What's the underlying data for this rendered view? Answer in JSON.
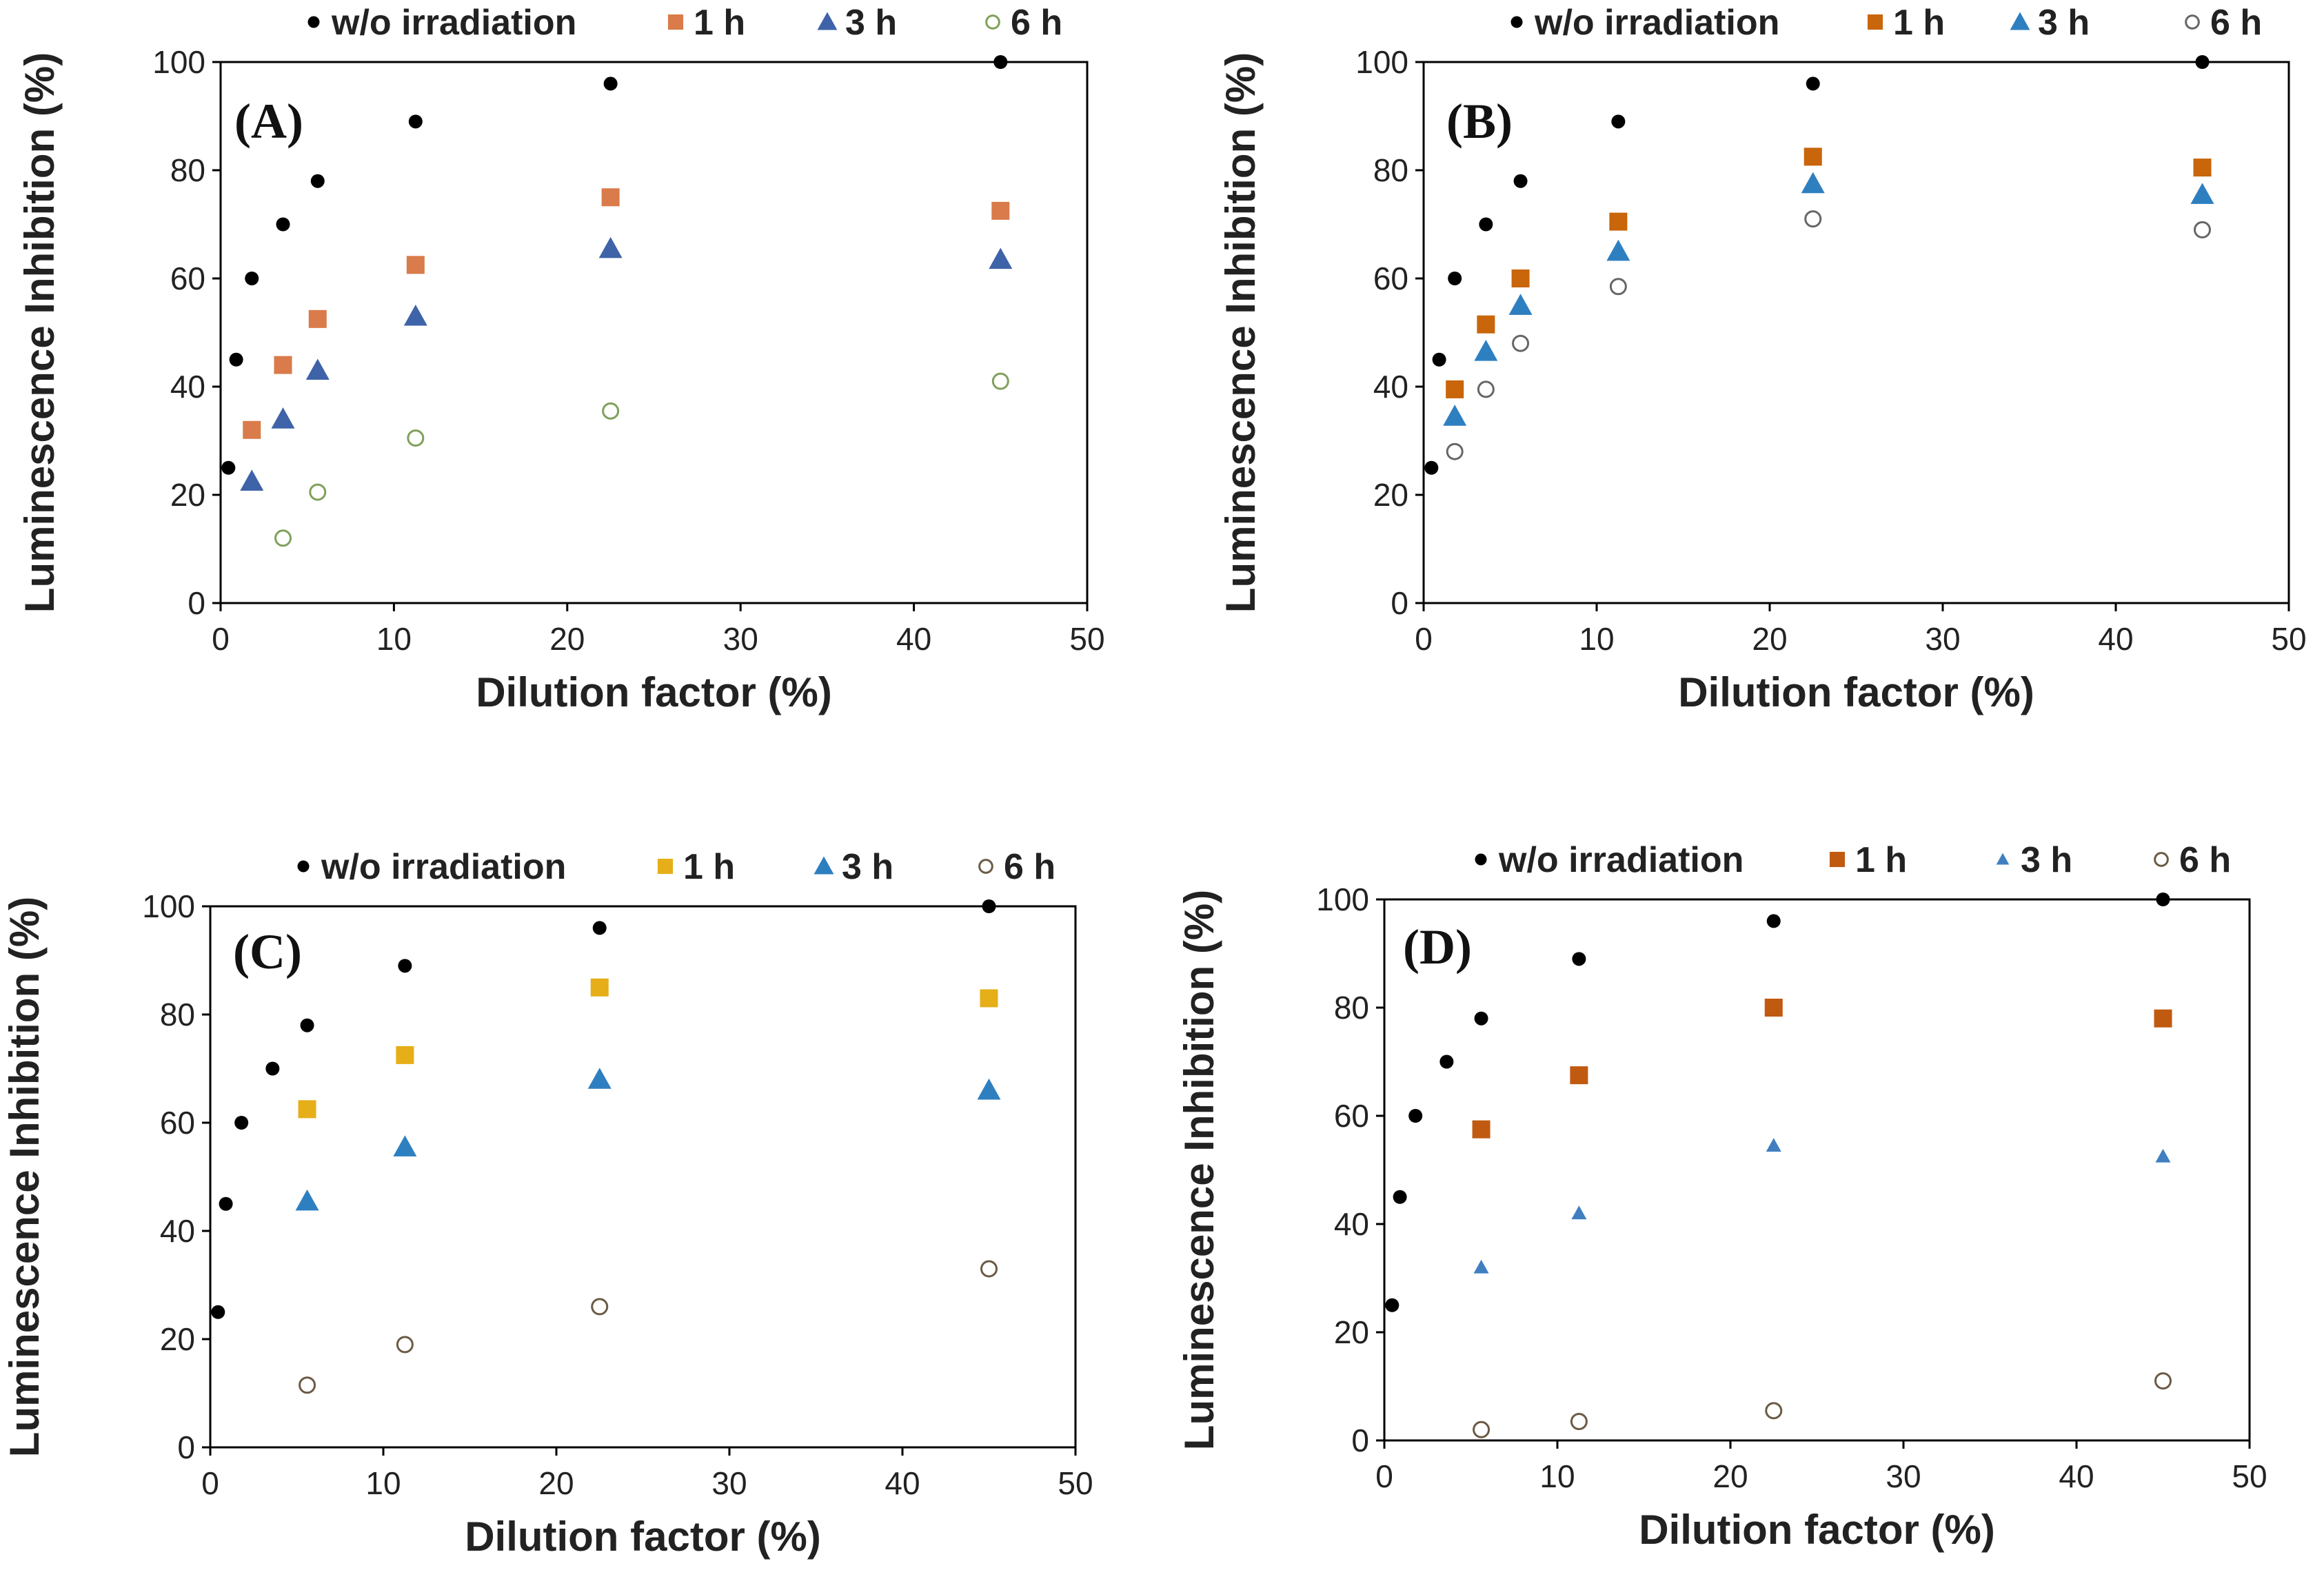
{
  "figure": {
    "x_label": "Dilution factor (%)",
    "y_label": "Luminescence Inhibition (%)"
  },
  "chart_data": [
    {
      "type": "scatter",
      "panel": "(A)",
      "xlabel": "Dilution factor (%)",
      "ylabel": "Luminescence Inhibition (%)",
      "xlim": [
        0,
        50
      ],
      "ylim": [
        0,
        100
      ],
      "xticks": [
        0,
        10,
        20,
        30,
        40,
        50
      ],
      "yticks": [
        0,
        20,
        40,
        60,
        80,
        100
      ],
      "series": [
        {
          "name": "w/o irradiation",
          "marker": "dot",
          "color": "#000000",
          "x": [
            0.45,
            0.9,
            1.8,
            3.6,
            5.6,
            11.25,
            22.5,
            45
          ],
          "y": [
            25,
            45,
            60,
            70,
            78,
            89,
            96,
            100
          ]
        },
        {
          "name": "1 h",
          "marker": "square",
          "color": "#D97B4A",
          "x": [
            1.8,
            3.6,
            5.6,
            11.25,
            22.5,
            45
          ],
          "y": [
            32,
            44,
            52.5,
            62.5,
            75,
            72.5
          ]
        },
        {
          "name": "3 h",
          "marker": "triangle",
          "color": "#3F63A8",
          "x": [
            1.8,
            3.6,
            5.6,
            11.25,
            22.5,
            45
          ],
          "y": [
            22.5,
            34,
            43,
            53,
            65.5,
            63.5
          ]
        },
        {
          "name": "6 h",
          "marker": "circle-open",
          "color": "#7FA05A",
          "x": [
            3.6,
            5.6,
            11.25,
            22.5,
            45
          ],
          "y": [
            12,
            20.5,
            30.5,
            35.5,
            41
          ]
        }
      ]
    },
    {
      "type": "scatter",
      "panel": "(B)",
      "xlabel": "Dilution factor (%)",
      "ylabel": "Luminescence Inhibition (%)",
      "xlim": [
        0,
        50
      ],
      "ylim": [
        0,
        100
      ],
      "xticks": [
        0,
        10,
        20,
        30,
        40,
        50
      ],
      "yticks": [
        0,
        20,
        40,
        60,
        80,
        100
      ],
      "series": [
        {
          "name": "w/o irradiation",
          "marker": "dot",
          "color": "#000000",
          "x": [
            0.45,
            0.9,
            1.8,
            3.6,
            5.6,
            11.25,
            22.5,
            45
          ],
          "y": [
            25,
            45,
            60,
            70,
            78,
            89,
            96,
            100
          ]
        },
        {
          "name": "1 h",
          "marker": "square",
          "color": "#C9650A",
          "x": [
            1.8,
            3.6,
            5.6,
            11.25,
            22.5,
            45
          ],
          "y": [
            39.5,
            51.5,
            60,
            70.5,
            82.5,
            80.5
          ]
        },
        {
          "name": "3 h",
          "marker": "triangle",
          "color": "#2E7FC0",
          "x": [
            1.8,
            3.6,
            5.6,
            11.25,
            22.5,
            45
          ],
          "y": [
            34.5,
            46.5,
            55,
            65,
            77.5,
            75.5
          ]
        },
        {
          "name": "6 h",
          "marker": "circle-open",
          "color": "#666666",
          "x": [
            1.8,
            3.6,
            5.6,
            11.25,
            22.5,
            45
          ],
          "y": [
            28,
            39.5,
            48,
            58.5,
            71,
            69
          ]
        }
      ]
    },
    {
      "type": "scatter",
      "panel": "(C)",
      "xlabel": "Dilution factor (%)",
      "ylabel": "Luminescence Inhibition (%)",
      "xlim": [
        0,
        50
      ],
      "ylim": [
        0,
        100
      ],
      "xticks": [
        0,
        10,
        20,
        30,
        40,
        50
      ],
      "yticks": [
        0,
        20,
        40,
        60,
        80,
        100
      ],
      "series": [
        {
          "name": "w/o irradiation",
          "marker": "dot",
          "color": "#000000",
          "x": [
            0.45,
            0.9,
            1.8,
            3.6,
            5.6,
            11.25,
            22.5,
            45
          ],
          "y": [
            25,
            45,
            60,
            70,
            78,
            89,
            96,
            100
          ]
        },
        {
          "name": "1 h",
          "marker": "square",
          "color": "#E6AE18",
          "x": [
            5.6,
            11.25,
            22.5,
            45
          ],
          "y": [
            62.5,
            72.5,
            85,
            83
          ]
        },
        {
          "name": "3 h",
          "marker": "triangle",
          "color": "#2E7FC0",
          "x": [
            5.6,
            11.25,
            22.5,
            45
          ],
          "y": [
            45.5,
            55.5,
            68,
            66
          ]
        },
        {
          "name": "6 h",
          "marker": "circle-open",
          "color": "#6B5A45",
          "x": [
            5.6,
            11.25,
            22.5,
            45
          ],
          "y": [
            11.5,
            19,
            26,
            33
          ]
        }
      ]
    },
    {
      "type": "scatter",
      "panel": "(D)",
      "xlabel": "Dilution factor (%)",
      "ylabel": "Luminescence Inhibition (%)",
      "xlim": [
        0,
        50
      ],
      "ylim": [
        0,
        100
      ],
      "xticks": [
        0,
        10,
        20,
        30,
        40,
        50
      ],
      "yticks": [
        0,
        20,
        40,
        60,
        80,
        100
      ],
      "series": [
        {
          "name": "w/o irradiation",
          "marker": "dot",
          "color": "#000000",
          "x": [
            0.45,
            0.9,
            1.8,
            3.6,
            5.6,
            11.25,
            22.5,
            45
          ],
          "y": [
            25,
            45,
            60,
            70,
            78,
            89,
            96,
            100
          ]
        },
        {
          "name": "1 h",
          "marker": "square",
          "color": "#C05A10",
          "x": [
            5.6,
            11.25,
            22.5,
            45
          ],
          "y": [
            57.5,
            67.5,
            80,
            78
          ]
        },
        {
          "name": "3 h",
          "marker": "triangle-small",
          "color": "#3F7FC0",
          "x": [
            5.6,
            11.25,
            22.5,
            45
          ],
          "y": [
            32,
            42,
            54.5,
            52.5
          ]
        },
        {
          "name": "6 h",
          "marker": "circle-open",
          "color": "#6B5A45",
          "x": [
            5.6,
            11.25,
            22.5,
            45
          ],
          "y": [
            2,
            3.5,
            5.5,
            11
          ]
        }
      ]
    }
  ]
}
